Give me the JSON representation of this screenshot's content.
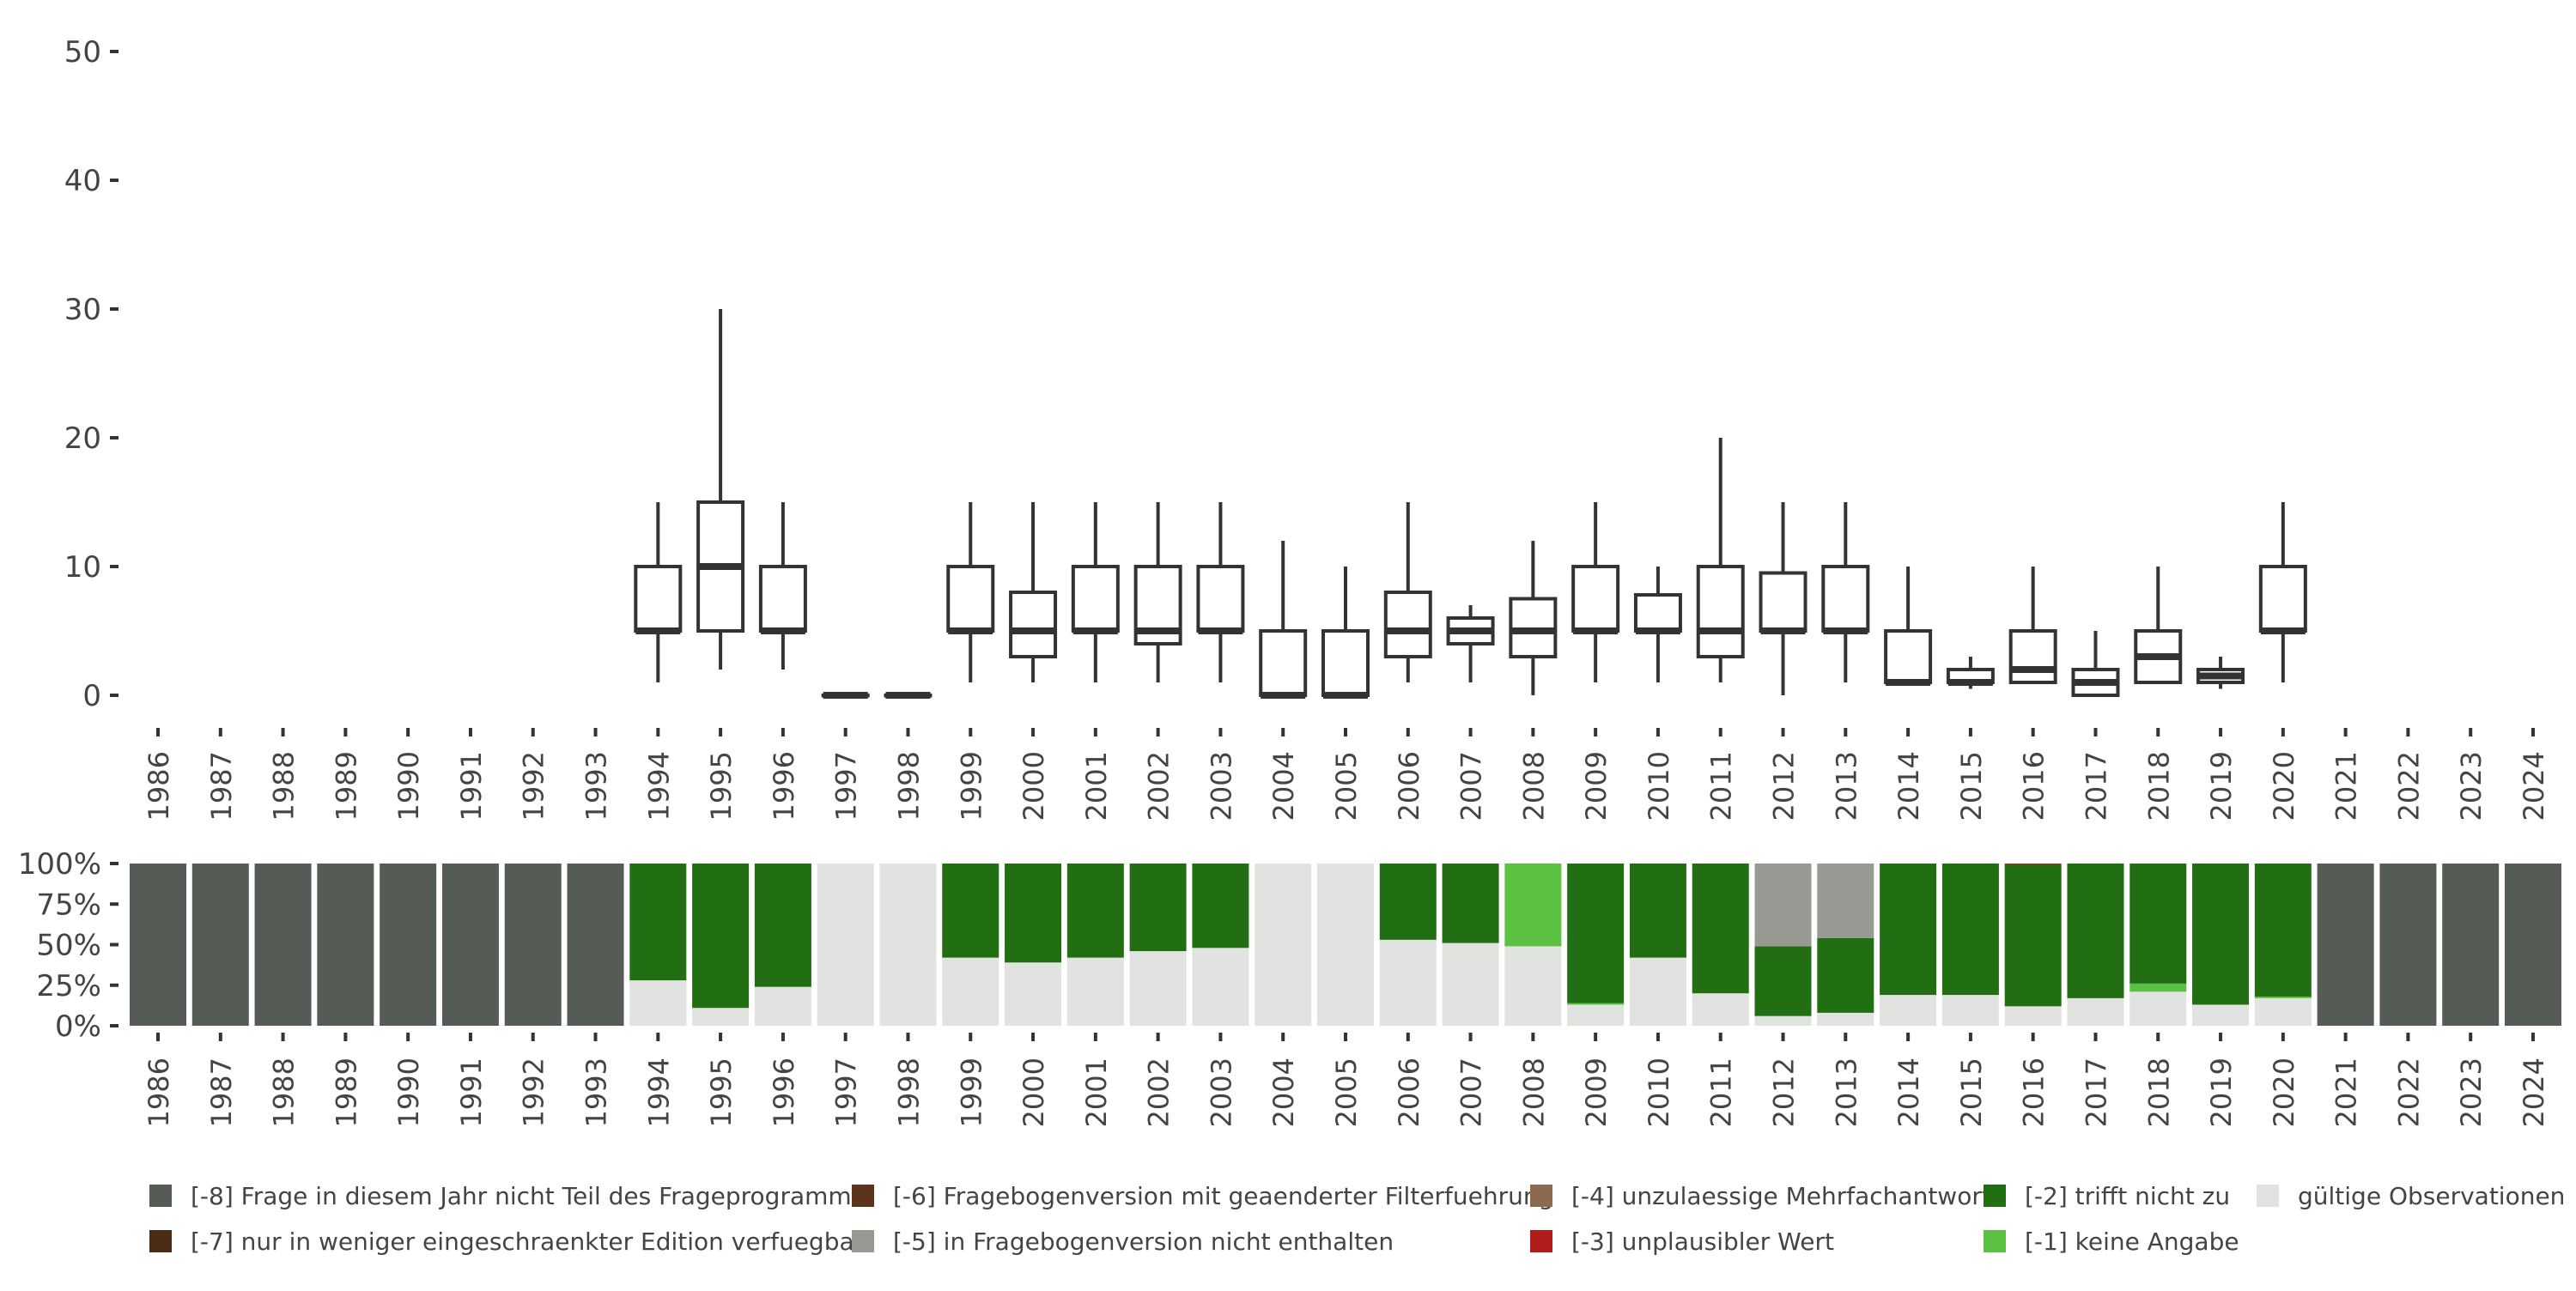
{
  "chart_data": [
    {
      "type": "boxplot",
      "title": "",
      "xlabel": "",
      "ylabel": "",
      "ylim": [
        0,
        50
      ],
      "yticks": [
        0,
        10,
        20,
        30,
        40,
        50
      ],
      "ytick_labels": [
        "0",
        "10",
        "20",
        "30",
        "40",
        "50"
      ],
      "categories": [
        "1986",
        "1987",
        "1988",
        "1989",
        "1990",
        "1991",
        "1992",
        "1993",
        "1994",
        "1995",
        "1996",
        "1997",
        "1998",
        "1999",
        "2000",
        "2001",
        "2002",
        "2003",
        "2004",
        "2005",
        "2006",
        "2007",
        "2008",
        "2009",
        "2010",
        "2011",
        "2012",
        "2013",
        "2014",
        "2015",
        "2016",
        "2017",
        "2018",
        "2019",
        "2020",
        "2021",
        "2022",
        "2023",
        "2024"
      ],
      "boxes": {
        "1994": {
          "min": 1,
          "q1": 5,
          "median": 5,
          "q3": 10,
          "max": 15
        },
        "1995": {
          "min": 2,
          "q1": 5,
          "median": 10,
          "q3": 15,
          "max": 30
        },
        "1996": {
          "min": 2,
          "q1": 5,
          "median": 5,
          "q3": 10,
          "max": 15
        },
        "1997": {
          "min": 0,
          "q1": 0,
          "median": 0,
          "q3": 0,
          "max": 0
        },
        "1998": {
          "min": 0,
          "q1": 0,
          "median": 0,
          "q3": 0,
          "max": 0
        },
        "1999": {
          "min": 1,
          "q1": 5,
          "median": 5,
          "q3": 10,
          "max": 15
        },
        "2000": {
          "min": 1,
          "q1": 3,
          "median": 5,
          "q3": 8,
          "max": 15
        },
        "2001": {
          "min": 1,
          "q1": 5,
          "median": 5,
          "q3": 10,
          "max": 15
        },
        "2002": {
          "min": 1,
          "q1": 4,
          "median": 5,
          "q3": 10,
          "max": 15
        },
        "2003": {
          "min": 1,
          "q1": 5,
          "median": 5,
          "q3": 10,
          "max": 15
        },
        "2004": {
          "min": 0,
          "q1": 0,
          "median": 0,
          "q3": 5,
          "max": 12
        },
        "2005": {
          "min": 0,
          "q1": 0,
          "median": 0,
          "q3": 5,
          "max": 10
        },
        "2006": {
          "min": 1,
          "q1": 3,
          "median": 5,
          "q3": 8,
          "max": 15
        },
        "2007": {
          "min": 1,
          "q1": 4,
          "median": 5,
          "q3": 6,
          "max": 7
        },
        "2008": {
          "min": 0,
          "q1": 3,
          "median": 5,
          "q3": 7.5,
          "max": 12
        },
        "2009": {
          "min": 1,
          "q1": 5,
          "median": 5,
          "q3": 10,
          "max": 15
        },
        "2010": {
          "min": 1,
          "q1": 5,
          "median": 5,
          "q3": 7.8,
          "max": 10
        },
        "2011": {
          "min": 1,
          "q1": 3,
          "median": 5,
          "q3": 10,
          "max": 20
        },
        "2012": {
          "min": 0,
          "q1": 5,
          "median": 5,
          "q3": 9.5,
          "max": 15
        },
        "2013": {
          "min": 1,
          "q1": 5,
          "median": 5,
          "q3": 10,
          "max": 15
        },
        "2014": {
          "min": 1,
          "q1": 1,
          "median": 1,
          "q3": 5,
          "max": 10
        },
        "2015": {
          "min": 0.5,
          "q1": 1,
          "median": 1,
          "q3": 2,
          "max": 3
        },
        "2016": {
          "min": 1,
          "q1": 1,
          "median": 2,
          "q3": 5,
          "max": 10
        },
        "2017": {
          "min": 0,
          "q1": 0,
          "median": 1,
          "q3": 2,
          "max": 5
        },
        "2018": {
          "min": 1,
          "q1": 1,
          "median": 3,
          "q3": 5,
          "max": 10
        },
        "2019": {
          "min": 0.5,
          "q1": 1,
          "median": 1.5,
          "q3": 2,
          "max": 3
        },
        "2020": {
          "min": 1,
          "q1": 5,
          "median": 5,
          "q3": 10,
          "max": 15
        }
      }
    },
    {
      "type": "stacked-bar",
      "ylim": [
        0,
        100
      ],
      "yticks": [
        0,
        25,
        50,
        75,
        100
      ],
      "ytick_labels": [
        "0%",
        "25%",
        "50%",
        "75%",
        "100%"
      ],
      "categories": [
        "1986",
        "1987",
        "1988",
        "1989",
        "1990",
        "1991",
        "1992",
        "1993",
        "1994",
        "1995",
        "1996",
        "1997",
        "1998",
        "1999",
        "2000",
        "2001",
        "2002",
        "2003",
        "2004",
        "2005",
        "2006",
        "2007",
        "2008",
        "2009",
        "2010",
        "2011",
        "2012",
        "2013",
        "2014",
        "2015",
        "2016",
        "2017",
        "2018",
        "2019",
        "2020",
        "2021",
        "2022",
        "2023",
        "2024"
      ],
      "legend_position": "bottom",
      "legend": [
        {
          "key": "m8",
          "label": "[-8] Frage in diesem Jahr nicht Teil des Frageprogramms",
          "color": "#555b55"
        },
        {
          "key": "m7",
          "label": "[-7] nur in weniger eingeschraenkter Edition verfuegbar",
          "color": "#4a2c14"
        },
        {
          "key": "m6",
          "label": "[-6] Fragebogenversion mit geaenderter Filterfuehrung",
          "color": "#5c3419"
        },
        {
          "key": "m5",
          "label": "[-5] in Fragebogenversion nicht enthalten",
          "color": "#969a92"
        },
        {
          "key": "m4",
          "label": "[-4] unzulaessige Mehrfachantwort",
          "color": "#8c6a4f"
        },
        {
          "key": "m3",
          "label": "[-3] unplausibler Wert",
          "color": "#b01c1c"
        },
        {
          "key": "m2",
          "label": "[-2] trifft nicht zu",
          "color": "#226e12"
        },
        {
          "key": "m1",
          "label": "[-1] keine Angabe",
          "color": "#5cc043"
        },
        {
          "key": "valid",
          "label": "gültige Observationen",
          "color": "#e0e3df"
        }
      ],
      "series": [
        {
          "name": "gültige Observationen",
          "key": "valid",
          "values": [
            0,
            0,
            0,
            0,
            0,
            0,
            0,
            0,
            28,
            11,
            24,
            100,
            100,
            42,
            39,
            42,
            46,
            48,
            100,
            100,
            53,
            51,
            49,
            13,
            42,
            20,
            6,
            8,
            19,
            19,
            12,
            17,
            21,
            13,
            17,
            0,
            0,
            0,
            0
          ]
        },
        {
          "name": "[-1] keine Angabe",
          "key": "m1",
          "values": [
            0,
            0,
            0,
            0,
            0,
            0,
            0,
            0,
            0,
            0,
            0,
            0,
            0,
            0,
            0,
            0,
            0,
            0,
            0,
            0,
            0,
            0,
            51,
            1,
            0,
            0,
            0,
            0,
            0,
            0,
            0,
            0,
            5,
            0,
            1,
            0,
            0,
            0,
            0
          ]
        },
        {
          "name": "[-2] trifft nicht zu",
          "key": "m2",
          "values": [
            0,
            0,
            0,
            0,
            0,
            0,
            0,
            0,
            72,
            89,
            76,
            0,
            0,
            58,
            61,
            58,
            54,
            52,
            0,
            0,
            47,
            49,
            0,
            86,
            58,
            80,
            43,
            46,
            81,
            81,
            87.5,
            83,
            74,
            87,
            82,
            0,
            0,
            0,
            0
          ]
        },
        {
          "name": "[-3] unplausibler Wert",
          "key": "m3",
          "values": [
            0,
            0,
            0,
            0,
            0,
            0,
            0,
            0,
            0,
            0,
            0,
            0,
            0,
            0,
            0,
            0,
            0,
            0,
            0,
            0,
            0,
            0,
            0,
            0,
            0,
            0,
            0,
            0,
            0,
            0,
            0.5,
            0,
            0,
            0,
            0,
            0,
            0,
            0,
            0
          ]
        },
        {
          "name": "[-4] unzulaessige Mehrfachantwort",
          "key": "m4",
          "values": [
            0,
            0,
            0,
            0,
            0,
            0,
            0,
            0,
            0,
            0,
            0,
            0,
            0,
            0,
            0,
            0,
            0,
            0,
            0,
            0,
            0,
            0,
            0,
            0,
            0,
            0,
            0,
            0,
            0,
            0,
            0,
            0,
            0,
            0,
            0,
            0,
            0,
            0,
            0
          ]
        },
        {
          "name": "[-5] in Fragebogenversion nicht enthalten",
          "key": "m5",
          "values": [
            0,
            0,
            0,
            0,
            0,
            0,
            0,
            0,
            0,
            0,
            0,
            0,
            0,
            0,
            0,
            0,
            0,
            0,
            0,
            0,
            0,
            0,
            0,
            0,
            0,
            0,
            51,
            46,
            0,
            0,
            0,
            0,
            0,
            0,
            0,
            0,
            0,
            0,
            0
          ]
        },
        {
          "name": "[-6] Fragebogenversion mit geaenderter Filterfuehrung",
          "key": "m6",
          "values": [
            0,
            0,
            0,
            0,
            0,
            0,
            0,
            0,
            0,
            0,
            0,
            0,
            0,
            0,
            0,
            0,
            0,
            0,
            0,
            0,
            0,
            0,
            0,
            0,
            0,
            0,
            0,
            0,
            0,
            0,
            0,
            0,
            0,
            0,
            0,
            0,
            0,
            0,
            0
          ]
        },
        {
          "name": "[-7] nur in weniger eingeschraenkter Edition verfuegbar",
          "key": "m7",
          "values": [
            0,
            0,
            0,
            0,
            0,
            0,
            0,
            0,
            0,
            0,
            0,
            0,
            0,
            0,
            0,
            0,
            0,
            0,
            0,
            0,
            0,
            0,
            0,
            0,
            0,
            0,
            0,
            0,
            0,
            0,
            0,
            0,
            0,
            0,
            0,
            0,
            0,
            0,
            0
          ]
        },
        {
          "name": "[-8] Frage in diesem Jahr nicht Teil des Frageprogramms",
          "key": "m8",
          "values": [
            100,
            100,
            100,
            100,
            100,
            100,
            100,
            100,
            0,
            0,
            0,
            0,
            0,
            0,
            0,
            0,
            0,
            0,
            0,
            0,
            0,
            0,
            0,
            0,
            0,
            0,
            0,
            0,
            0,
            0,
            0,
            0,
            0,
            0,
            0,
            100,
            100,
            100,
            100
          ]
        }
      ]
    }
  ]
}
